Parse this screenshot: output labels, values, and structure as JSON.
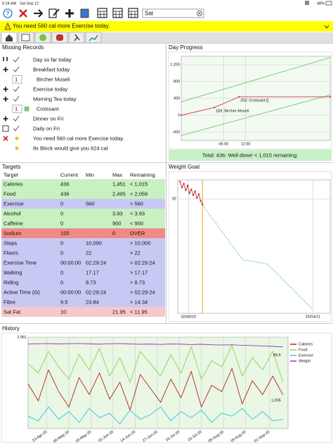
{
  "status_bar": {
    "time": "6:24 AM",
    "date": "Sat Sep 12",
    "battery": "48%"
  },
  "toolbar": {
    "search": "Sat"
  },
  "banner": {
    "message": "You need 560 cal more Exercise today."
  },
  "missing_records": {
    "title": "Missing Records",
    "items": [
      {
        "text": "Day so far today"
      },
      {
        "text": "Breakfast today"
      },
      {
        "text": "Bircher Museli",
        "quantity": 1
      },
      {
        "text": "Exercise today"
      },
      {
        "text": "Morning Tea today"
      },
      {
        "text": "Croissant",
        "quantity": 1
      },
      {
        "text": "Dinner on Fri"
      },
      {
        "text": "Daily on Fri"
      },
      {
        "text": "You need 560 cal more Exercise today."
      },
      {
        "text": "8x Block would give you 624 cal"
      }
    ]
  },
  "day_progress": {
    "title": "Day Progress",
    "total": "Total: 436: Well done! < 1,015 remaining.",
    "chart": {
      "type": "line",
      "grid": true,
      "plot_color": "#f3faf1",
      "x": [
        -5.5,
        3.5,
        10.2,
        35
      ],
      "xlim": [
        -5.5,
        35
      ],
      "xticks": [
        {
          "value": 6,
          "label": "06:00"
        },
        {
          "value": 12,
          "label": "12:00"
        }
      ],
      "ylim": [
        -600,
        1400
      ],
      "yticks": [
        {
          "value": 1200,
          "label": "1,200"
        },
        800,
        400,
        0,
        -400
      ],
      "series": [
        {
          "color": "#6cc86c",
          "x": [
            -5.5,
            35
          ],
          "values": [
            317,
            1367
          ]
        },
        {
          "color": "#6cc86c",
          "x": [
            -5.5,
            35
          ],
          "values": [
            -483,
            483
          ]
        },
        {
          "color": "#d04040",
          "values": [
            0,
            183,
            436,
            436
          ],
          "markers": true
        }
      ],
      "annotations": [
        {
          "x": 3.5,
          "y": 183,
          "text": "183: Bircher Museli"
        },
        {
          "x": 10.2,
          "y": 436,
          "text": "253: Croissant []"
        }
      ]
    }
  },
  "targets": {
    "title": "Targets",
    "columns": [
      "Target",
      "Current",
      "Min",
      "Max",
      "Remaining"
    ],
    "rows": [
      {
        "color": "#c8f0c0",
        "cells": [
          "Calories",
          "436",
          null,
          "1,451",
          "< 1,015"
        ]
      },
      {
        "color": "#c8f0c0",
        "cells": [
          "Food",
          "436",
          null,
          "2,495",
          "< 2,059"
        ]
      },
      {
        "color": "#c8c8f4",
        "cells": [
          "Exercise",
          "0",
          "560",
          null,
          "> 560"
        ]
      },
      {
        "color": "#c8f0c0",
        "cells": [
          "Alcohol",
          "0",
          null,
          "3.93",
          "< 3.93"
        ]
      },
      {
        "color": "#c8f0c0",
        "cells": [
          "Caffeine",
          "0",
          null,
          "900",
          "< 900"
        ]
      },
      {
        "color": "#f08a84",
        "cells": [
          "Sodium",
          "155",
          null,
          "0",
          "OVER"
        ]
      },
      {
        "color": "#c8c8f4",
        "cells": [
          "Steps",
          "0",
          "10,000",
          null,
          "> 10,000"
        ]
      },
      {
        "color": "#c8c8f4",
        "cells": [
          "Floors",
          "0",
          "22",
          null,
          "> 22"
        ]
      },
      {
        "color": "#c8c8f4",
        "cells": [
          "Exercise Time",
          "00:00:00",
          "02:29:24",
          null,
          "> 02:29:24"
        ]
      },
      {
        "color": "#c8c8f4",
        "cells": [
          "Walking",
          "0",
          "17.17",
          null,
          "> 17.17"
        ]
      },
      {
        "color": "#c8c8f4",
        "cells": [
          "Riding",
          "0",
          "8.73",
          null,
          "> 8.73"
        ]
      },
      {
        "color": "#c8c8f4",
        "cells": [
          "Active Time (G)",
          "00:00:00",
          "02:29:24",
          null,
          "> 02:29:24"
        ]
      },
      {
        "color": "#c8c8f4",
        "cells": [
          "Fibre",
          "9.5",
          "23.84",
          null,
          "> 14.34"
        ]
      },
      {
        "color": "#f8c8c8",
        "cells": [
          "Sat Fat",
          "10",
          null,
          "21.95",
          "< 11.95"
        ]
      }
    ]
  },
  "weight_goal": {
    "title": "Weight Goal",
    "chart": {
      "type": "line",
      "grid": true,
      "plot_color": "#ffffff",
      "x": [
        "2020-07-15",
        "2020-07-19",
        "2020-07-23",
        "2020-07-27",
        "2020-07-31",
        "2020-08-04",
        "2020-08-08",
        "2020-08-12",
        "2020-08-16",
        "2020-08-20",
        "2020-08-24",
        "2020-08-28",
        "2020-09-01"
      ],
      "xlim": [
        "2020-07-10",
        "2021-06-01"
      ],
      "xticks": [
        {
          "value": "2020-08-02",
          "label": "02/08/20"
        },
        {
          "value": "2021-04-25",
          "label": "25/04/21"
        }
      ],
      "ylim": [
        80,
        94
      ],
      "yticks": [
        92
      ],
      "marker_date": "2020-09-01",
      "marker_color": "#f0a020",
      "series": [
        {
          "color": "#c03030",
          "values": [
            93.8,
            93.2,
            93.6,
            92.9,
            93.4,
            92.6,
            93.0,
            92.4,
            92.8,
            92.1,
            92.5,
            91.8,
            91.4
          ],
          "markers": true
        },
        {
          "color": "#5cc85c",
          "dash": true,
          "x": [
            "2020-09-01",
            "2020-11-26",
            "2021-01-17",
            "2021-04-25"
          ],
          "values": [
            91.35,
            85.6,
            85.2,
            80.4
          ]
        }
      ]
    }
  },
  "history": {
    "title": "History",
    "chart": {
      "type": "line",
      "grid": true,
      "plot_color": "#e9f7e4",
      "x": [
        "2020-04-12",
        "2020-04-18",
        "2020-04-24",
        "2020-04-30",
        "2020-05-06",
        "2020-05-12",
        "2020-05-18",
        "2020-05-24",
        "2020-05-30",
        "2020-06-05",
        "2020-06-11",
        "2020-06-17",
        "2020-06-23",
        "2020-06-29",
        "2020-07-05",
        "2020-07-11",
        "2020-07-17",
        "2020-07-23",
        "2020-07-29",
        "2020-08-04",
        "2020-08-10",
        "2020-08-16",
        "2020-08-22",
        "2020-08-28",
        "2020-09-03",
        "2020-09-09"
      ],
      "xlim": [
        "2020-04-12",
        "2020-09-12"
      ],
      "xticks": [
        {
          "value": "2020-04-23",
          "label": "23-Apr-20"
        },
        {
          "value": "2020-05-06",
          "label": "06-May-20"
        },
        {
          "value": "2020-05-19",
          "label": "19-May-20"
        },
        {
          "value": "2020-06-01",
          "label": "01-Jun-20"
        },
        {
          "value": "2020-06-14",
          "label": "14-Jun-20"
        },
        {
          "value": "2020-06-27",
          "label": "27-Jun-20"
        },
        {
          "value": "2020-07-10",
          "label": "10-Jul-20"
        },
        {
          "value": "2020-07-23",
          "label": "23-Jul-20"
        },
        {
          "value": "2020-08-05",
          "label": "05-Aug-20"
        },
        {
          "value": "2020-08-18",
          "label": "18-Aug-20"
        },
        {
          "value": "2020-09-01",
          "label": "01-Sep-20"
        }
      ],
      "ylim": [
        0,
        2961
      ],
      "yticks": [
        {
          "value": 2961,
          "label": "2,961"
        }
      ],
      "y2lim": [
        0,
        100
      ],
      "legend": "right",
      "series": [
        {
          "name": "Calories",
          "color": "#b22222",
          "end_label": "1,095",
          "values": [
            1450,
            900,
            1900,
            1200,
            700,
            1650,
            1100,
            1800,
            950,
            1500,
            600,
            1750,
            1300,
            850,
            1600,
            1000,
            1850,
            700,
            1400,
            1200,
            1950,
            800,
            1550,
            1100,
            1700,
            1095
          ]
        },
        {
          "name": "Food",
          "color": "#8fd14f",
          "values": [
            2100,
            1800,
            2500,
            2000,
            1600,
            2400,
            1900,
            2600,
            1700,
            2300,
            1500,
            2500,
            2100,
            1700,
            2400,
            1800,
            2650,
            1600,
            2200,
            2000,
            2700,
            1700,
            2300,
            1900,
            2500,
            1500
          ]
        },
        {
          "name": "Exercise",
          "color": "#2ec4e6",
          "values": [
            400,
            250,
            700,
            300,
            550,
            200,
            650,
            350,
            500,
            150,
            600,
            300,
            450,
            700,
            250,
            550,
            350,
            600,
            200,
            500,
            400,
            650,
            300,
            550,
            250,
            300
          ]
        },
        {
          "name": "Weight",
          "color": "#9933cc",
          "axis": "y2",
          "end_label": "89.5",
          "values": [
            92.5,
            92.8,
            93.0,
            92.6,
            92.9,
            93.1,
            92.7,
            92.4,
            92.8,
            93.0,
            92.6,
            92.3,
            92.5,
            92.2,
            92.6,
            92.4,
            92.0,
            92.3,
            91.8,
            91.5,
            91.7,
            91.2,
            90.8,
            90.4,
            90.0,
            89.5
          ]
        }
      ]
    }
  }
}
